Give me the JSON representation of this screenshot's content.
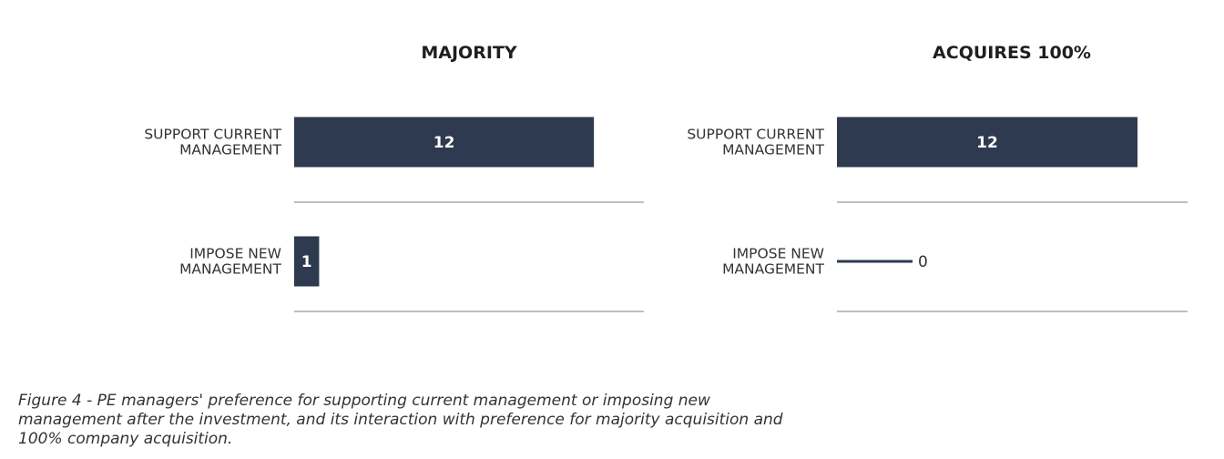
{
  "chart_data": [
    {
      "type": "bar",
      "orientation": "horizontal",
      "title": "MAJORITY",
      "categories": [
        "SUPPORT CURRENT\nMANAGEMENT",
        "IMPOSE NEW\nMANAGEMENT"
      ],
      "values": [
        12,
        1
      ],
      "xlim": [
        0,
        14
      ],
      "grid": false,
      "bar_color": "#2e3a4f"
    },
    {
      "type": "bar",
      "orientation": "horizontal",
      "title": "ACQUIRES 100%",
      "categories": [
        "SUPPORT CURRENT\nMANAGEMENT",
        "IMPOSE NEW\nMANAGEMENT"
      ],
      "values": [
        12,
        0
      ],
      "xlim": [
        0,
        14
      ],
      "grid": false,
      "bar_color": "#2e3a4f"
    }
  ],
  "caption": "Figure 4 - PE managers' preference for supporting current management or imposing new management after the investment, and its interaction with preference for majority acquisition and 100% company acquisition."
}
